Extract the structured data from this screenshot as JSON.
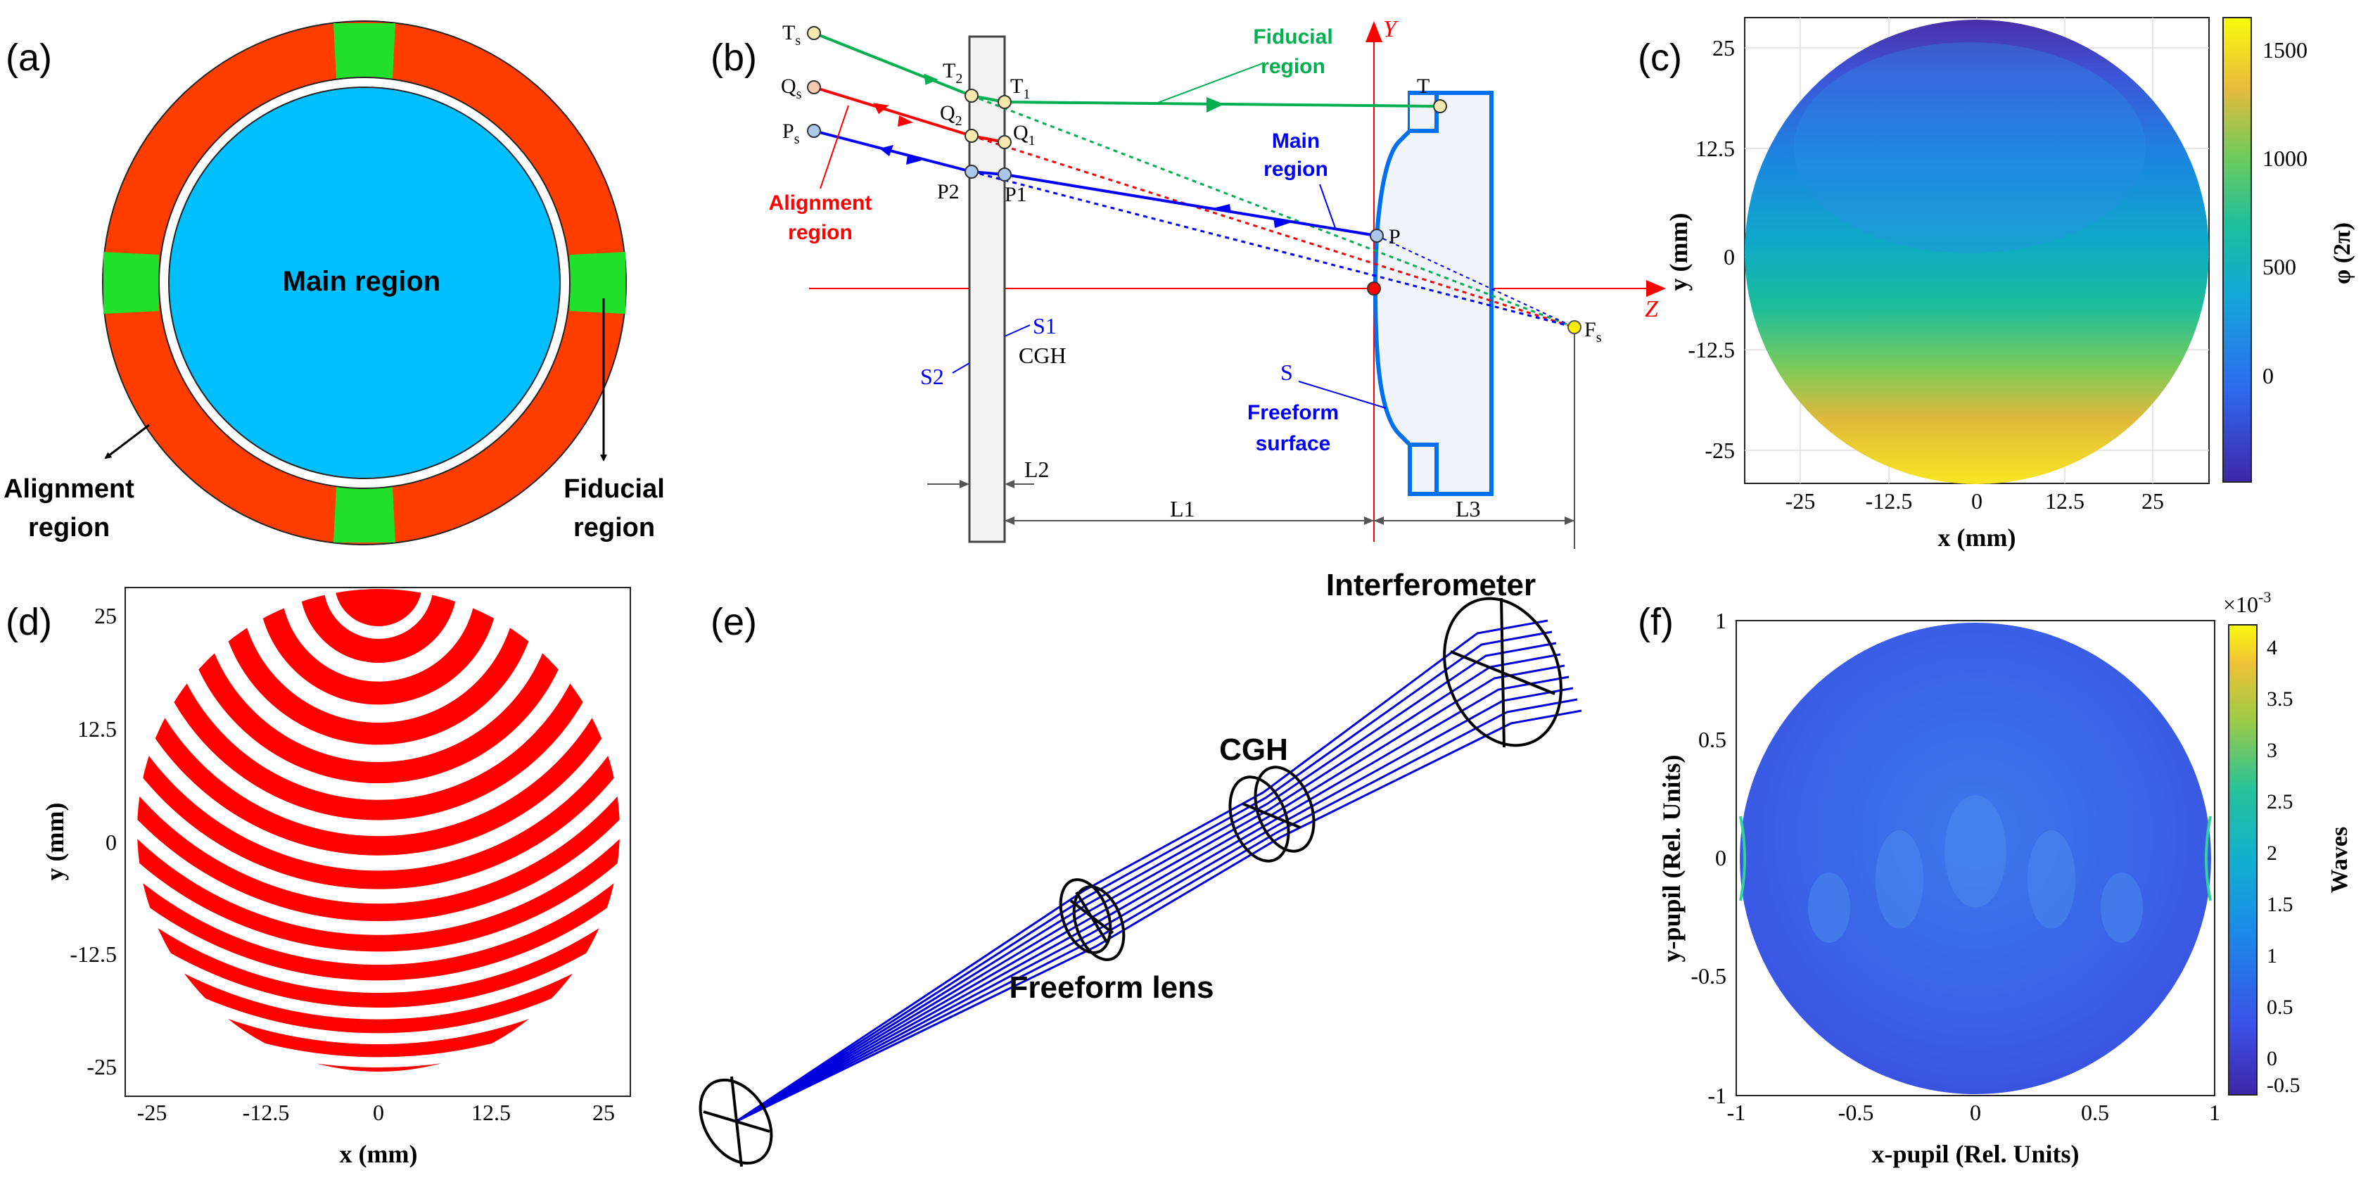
{
  "panels": {
    "a": {
      "label": "(a)",
      "main_region": "Main region",
      "alignment_line1": "Alignment",
      "alignment_line2": "region",
      "fiducial_line1": "Fiducial",
      "fiducial_line2": "region",
      "colors": {
        "ring": "#ff3d00",
        "fiducial": "#22e02a",
        "main": "#00bfff"
      }
    },
    "b": {
      "label": "(b)",
      "points": {
        "Ts": "T",
        "Ts_sub": "s",
        "Qs": "Q",
        "Qs_sub": "s",
        "Ps": "P",
        "Ps_sub": "s",
        "T2": "T",
        "T2_sub": "2",
        "T1": "T",
        "T1_sub": "1",
        "Q2": "Q",
        "Q2_sub": "2",
        "Q1": "Q",
        "Q1_sub": "1",
        "P2": "P2",
        "P1": "P1",
        "T": "T",
        "P": "P",
        "Fs": "F",
        "Fs_sub": "s"
      },
      "fiducial_region_line1": "Fiducial",
      "fiducial_region_line2": "region",
      "main_region_line1": "Main",
      "main_region_line2": "region",
      "alignment_region_line1": "Alignment",
      "alignment_region_line2": "region",
      "axis_y": "Y",
      "axis_z": "Z",
      "s1": "S1",
      "cgh": "CGH",
      "s2": "S2",
      "s": "S",
      "freeform_line1": "Freeform",
      "freeform_line2": "surface",
      "l1": "L1",
      "l2": "L2",
      "l3": "L3",
      "colors": {
        "fiducial": "#00b050",
        "alignment": "#ff0000",
        "main": "#0000ff",
        "lens": "#0070f0"
      }
    },
    "c": {
      "label": "(c)",
      "xlabel": "x (mm)",
      "ylabel": "y (mm)",
      "cbar_label": "φ (2π)",
      "xticks": [
        "-25",
        "-12.5",
        "0",
        "12.5",
        "25"
      ],
      "yticks": [
        "25",
        "12.5",
        "0",
        "-12.5",
        "-25"
      ],
      "cbar_ticks": [
        "1500",
        "1000",
        "500",
        "0"
      ]
    },
    "d": {
      "label": "(d)",
      "xlabel": "x (mm)",
      "ylabel": "y (mm)",
      "xticks": [
        "-25",
        "-12.5",
        "0",
        "12.5",
        "25"
      ],
      "yticks": [
        "25",
        "12.5",
        "0",
        "-12.5",
        "-25"
      ],
      "fringe_color": "#ff0000"
    },
    "e": {
      "label": "(e)",
      "interferometer": "Interferometer",
      "cgh": "CGH",
      "freeform_lens": "Freeform lens",
      "ray_color": "#0000dd"
    },
    "f": {
      "label": "(f)",
      "xlabel": "x-pupil (Rel. Units)",
      "ylabel": "y-pupil (Rel. Units)",
      "cbar_label": "Waves",
      "cbar_exponent": "×10",
      "cbar_exponent_power": "-3",
      "xticks": [
        "-1",
        "-0.5",
        "0",
        "0.5",
        "1"
      ],
      "yticks": [
        "1",
        "0.5",
        "0",
        "-0.5",
        "-1"
      ],
      "cbar_ticks": [
        "4",
        "3.5",
        "3",
        "2.5",
        "2",
        "1.5",
        "1",
        "0.5",
        "0",
        "-0.5"
      ]
    }
  }
}
